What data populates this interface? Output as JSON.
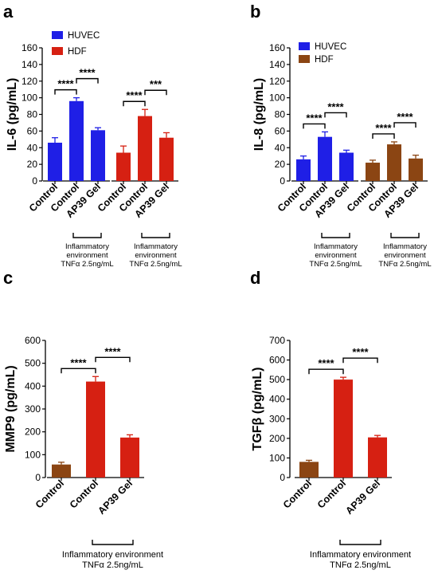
{
  "chart_data": [
    {
      "panel": "a",
      "type": "bar",
      "ylabel": "IL-6 (pg/mL)",
      "ylim": [
        0,
        160
      ],
      "yticks": [
        0,
        20,
        40,
        60,
        80,
        100,
        120,
        140,
        160
      ],
      "legend": [
        {
          "name": "HUVEC",
          "color": "#1f1fe6"
        },
        {
          "name": "HDF",
          "color": "#d62012"
        }
      ],
      "groups": [
        {
          "series": "HUVEC",
          "color": "#1f1fe6",
          "categories": [
            "Control",
            "Control",
            "AP39 Gel"
          ],
          "values": [
            46,
            96,
            61
          ],
          "errors": [
            6,
            4,
            3
          ],
          "env_label": "Inflammatory environment TNFα 2.5ng/mL"
        },
        {
          "series": "HDF",
          "color": "#d62012",
          "categories": [
            "Control",
            "Control",
            "AP39 Gel"
          ],
          "values": [
            34,
            78,
            52
          ],
          "errors": [
            8,
            8,
            6
          ],
          "env_label": "Inflammatory environment TNFα 2.5ng/mL"
        }
      ],
      "significance": [
        {
          "group": 0,
          "from": 0,
          "to": 1,
          "label": "****"
        },
        {
          "group": 0,
          "from": 1,
          "to": 2,
          "label": "****"
        },
        {
          "group": 1,
          "from": 0,
          "to": 1,
          "label": "****"
        },
        {
          "group": 1,
          "from": 1,
          "to": 2,
          "label": "***"
        }
      ]
    },
    {
      "panel": "b",
      "type": "bar",
      "ylabel": "IL-8 (pg/mL)",
      "ylim": [
        0,
        160
      ],
      "yticks": [
        0,
        20,
        40,
        60,
        80,
        100,
        120,
        140,
        160
      ],
      "legend": [
        {
          "name": "HUVEC",
          "color": "#1f1fe6"
        },
        {
          "name": "HDF",
          "color": "#8b4513"
        }
      ],
      "groups": [
        {
          "series": "HUVEC",
          "color": "#1f1fe6",
          "categories": [
            "Control",
            "Control",
            "AP39 Gel"
          ],
          "values": [
            26,
            53,
            34
          ],
          "errors": [
            4,
            6,
            3
          ],
          "env_label": "Inflammatory environment TNFα 2.5ng/mL"
        },
        {
          "series": "HDF",
          "color": "#8b4513",
          "categories": [
            "Control",
            "Control",
            "AP39 Gel"
          ],
          "values": [
            22,
            44,
            27
          ],
          "errors": [
            3,
            3,
            4
          ],
          "env_label": "Inflammatory environment TNFα 2.5ng/mL"
        }
      ],
      "significance": [
        {
          "group": 0,
          "from": 0,
          "to": 1,
          "label": "****"
        },
        {
          "group": 0,
          "from": 1,
          "to": 2,
          "label": "****"
        },
        {
          "group": 1,
          "from": 0,
          "to": 1,
          "label": "****"
        },
        {
          "group": 1,
          "from": 1,
          "to": 2,
          "label": "****"
        }
      ]
    },
    {
      "panel": "c",
      "type": "bar",
      "ylabel": "MMP9 (pg/mL)",
      "ylim": [
        0,
        600
      ],
      "yticks": [
        0,
        100,
        200,
        300,
        400,
        500,
        600
      ],
      "legend": [],
      "groups": [
        {
          "series": "",
          "colors": [
            "#8b4513",
            "#d62012",
            "#d62012"
          ],
          "categories": [
            "Control",
            "Control",
            "AP39 Gel"
          ],
          "values": [
            57,
            420,
            175
          ],
          "errors": [
            10,
            22,
            12
          ],
          "env_label": "Inflammatory environment TNFα 2.5ng/mL"
        }
      ],
      "significance": [
        {
          "group": 0,
          "from": 0,
          "to": 1,
          "label": "****"
        },
        {
          "group": 0,
          "from": 1,
          "to": 2,
          "label": "****"
        }
      ]
    },
    {
      "panel": "d",
      "type": "bar",
      "ylabel": "TGFβ (pg/mL)",
      "ylim": [
        0,
        700
      ],
      "yticks": [
        0,
        100,
        200,
        300,
        400,
        500,
        600,
        700
      ],
      "legend": [],
      "groups": [
        {
          "series": "",
          "colors": [
            "#8b4513",
            "#d62012",
            "#d62012"
          ],
          "categories": [
            "Control",
            "Control",
            "AP39 Gel"
          ],
          "values": [
            80,
            500,
            205
          ],
          "errors": [
            8,
            12,
            10
          ],
          "env_label": "Inflammatory environment TNFα 2.5ng/mL"
        }
      ],
      "significance": [
        {
          "group": 0,
          "from": 0,
          "to": 1,
          "label": "****"
        },
        {
          "group": 0,
          "from": 1,
          "to": 2,
          "label": "****"
        }
      ]
    }
  ]
}
